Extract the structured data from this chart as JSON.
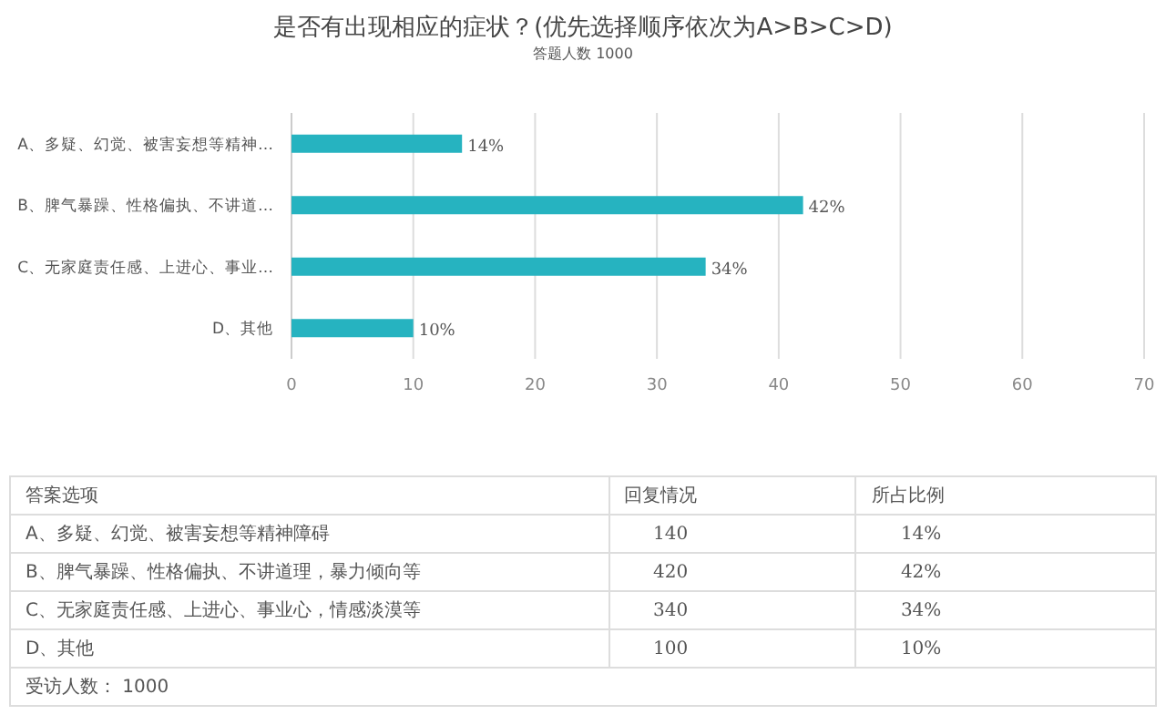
{
  "chart_data": {
    "type": "bar",
    "orientation": "horizontal",
    "title": "是否有出现相应的症状？(优先选择顺序依次为A>B>C>D)",
    "subtitle": "答题人数 1000",
    "categories": [
      "A、多疑、幻觉、被害妄想等精神…",
      "B、脾气暴躁、性格偏执、不讲道…",
      "C、无家庭责任感、上进心、事业…",
      "D、其他"
    ],
    "values": [
      14,
      42,
      34,
      10
    ],
    "color": "#26b3c0",
    "value_labels": [
      "14%",
      "42%",
      "34%",
      "10%"
    ],
    "xlim": [
      0,
      70
    ],
    "xticks": [
      0,
      10,
      20,
      30,
      40,
      50,
      60,
      70
    ],
    "grid": "x",
    "annotations": [
      "答案选项",
      "回复情况",
      "所占比例",
      "A、多疑、幻觉、被害妄想等精神障碍",
      "140",
      "14%",
      "B、脾气暴躁、性格偏执、不讲道理，暴力倾向等",
      "420",
      "42%",
      "C、无家庭责任感、上进心、事业心，情感淡漠等",
      "340",
      "34%",
      "D、其他",
      "100",
      "10%",
      "受访人数： 1000"
    ]
  }
}
